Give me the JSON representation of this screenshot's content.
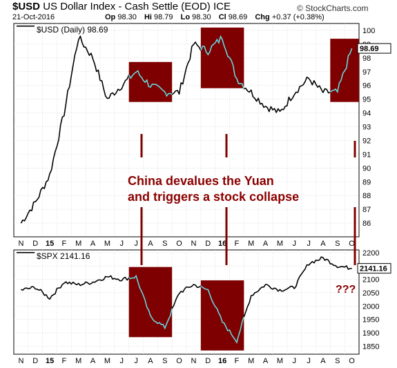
{
  "header": {
    "symbol": "$USD",
    "name": "US Dollar Index - Cash Settle (EOD)",
    "exchange": "ICE",
    "date": "21-Oct-2016",
    "open_label": "Op",
    "open": "98.30",
    "high_label": "Hi",
    "high": "98.79",
    "low_label": "Lo",
    "low": "98.30",
    "close_label": "Cl",
    "close": "98.69",
    "change_label": "Chg",
    "change": "+0.37 (+0.38%)",
    "brand": "© StockCharts.com"
  },
  "annotation": {
    "line1": "China devalues the Yuan",
    "line2": "and triggers a stock collapse",
    "question": "???"
  },
  "colors": {
    "line": "#000000",
    "highlight_box": "#7f0000",
    "highlight_line": "#6fd8e0",
    "annotation_text": "#8b0000",
    "grid": "#c8c8c8"
  },
  "x_axis": {
    "labels": [
      "N",
      "D",
      "15",
      "F",
      "M",
      "A",
      "M",
      "J",
      "J",
      "A",
      "S",
      "O",
      "N",
      "D",
      "16",
      "F",
      "M",
      "A",
      "M",
      "J",
      "J",
      "A",
      "S",
      "O"
    ],
    "bold": [
      "15",
      "16"
    ]
  },
  "chart_data": [
    {
      "type": "line",
      "title": "$USD (Daily) 98.69",
      "series": [
        {
          "name": "$USD",
          "x": [
            "2014-11",
            "2014-12",
            "2015-01",
            "2015-02",
            "2015-03",
            "2015-04",
            "2015-05",
            "2015-06",
            "2015-07",
            "2015-08",
            "2015-09",
            "2015-10",
            "2015-11",
            "2015-12",
            "2016-01",
            "2016-02",
            "2016-03",
            "2016-04",
            "2016-05",
            "2016-06",
            "2016-07",
            "2016-08",
            "2016-09",
            "2016-10"
          ],
          "values": [
            86.0,
            87.5,
            89.5,
            94.0,
            99.5,
            98.0,
            95.0,
            96.0,
            97.0,
            96.0,
            95.5,
            95.5,
            99.0,
            98.5,
            99.5,
            96.5,
            95.5,
            94.5,
            94.0,
            95.5,
            96.5,
            95.5,
            95.5,
            98.69
          ]
        }
      ],
      "y_ticks": [
        "86",
        "87",
        "88",
        "89",
        "90",
        "91",
        "92",
        "93",
        "94",
        "95",
        "96",
        "97",
        "98",
        "99",
        "100"
      ],
      "ylim": [
        85,
        100.5
      ],
      "last_value_label": "98.69",
      "highlight_periods": [
        {
          "from": "2015-07",
          "to": "2015-09",
          "label": "Yuan devaluation"
        },
        {
          "from": "2015-12",
          "to": "2016-02"
        },
        {
          "from": "2016-09",
          "to": "2016-10"
        }
      ]
    },
    {
      "type": "line",
      "title": "$SPX 2141.16",
      "series": [
        {
          "name": "$SPX",
          "x": [
            "2014-11",
            "2014-12",
            "2015-01",
            "2015-02",
            "2015-03",
            "2015-04",
            "2015-05",
            "2015-06",
            "2015-07",
            "2015-08",
            "2015-09",
            "2015-10",
            "2015-11",
            "2015-12",
            "2016-01",
            "2016-02",
            "2016-03",
            "2016-04",
            "2016-05",
            "2016-06",
            "2016-07",
            "2016-08",
            "2016-09",
            "2016-10"
          ],
          "values": [
            2060,
            2070,
            2030,
            2090,
            2080,
            2090,
            2110,
            2100,
            2110,
            1960,
            1920,
            2050,
            2080,
            2060,
            1940,
            1870,
            2040,
            2080,
            2060,
            2070,
            2160,
            2180,
            2150,
            2141.16
          ]
        }
      ],
      "y_ticks": [
        "1850",
        "1900",
        "1950",
        "2000",
        "2050",
        "2100",
        "2150",
        "2200"
      ],
      "ylim": [
        1820,
        2210
      ],
      "last_value_label": "2141.16",
      "highlight_periods": [
        {
          "from": "2015-07",
          "to": "2015-09"
        },
        {
          "from": "2015-12",
          "to": "2016-02"
        }
      ]
    }
  ]
}
